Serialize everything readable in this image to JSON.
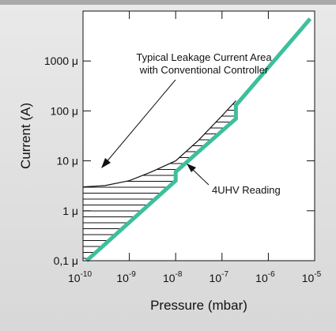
{
  "chart_data": {
    "type": "line",
    "xlabel": "Pressure (mbar)",
    "ylabel": "Current (A)",
    "x_scale": "log",
    "y_scale": "log",
    "xlim": [
      1e-10,
      1e-05
    ],
    "ylim": [
      1e-07,
      0.01
    ],
    "x_tick_labels": [
      {
        "base": "10",
        "exp": "-10"
      },
      {
        "base": "10",
        "exp": "-9"
      },
      {
        "base": "10",
        "exp": "-8"
      },
      {
        "base": "10",
        "exp": "-7"
      },
      {
        "base": "10",
        "exp": "-6"
      },
      {
        "base": "10",
        "exp": "-5"
      }
    ],
    "x_ticks": [
      1e-10,
      1e-09,
      1e-08,
      1e-07,
      1e-06,
      1e-05
    ],
    "y_tick_labels": [
      "0,1 μ",
      "1 μ",
      "10 μ",
      "100 μ",
      "1000 μ"
    ],
    "y_ticks": [
      1e-07,
      1e-06,
      1e-05,
      0.0001,
      0.001
    ],
    "grid": false,
    "series": [
      {
        "color": "#3dbf9c",
        "points": [
          [
            1.2e-10,
            1e-07
          ],
          [
            1e-08,
            4e-06
          ],
          [
            1e-08,
            6e-06
          ],
          [
            2e-07,
            7e-05
          ],
          [
            2e-07,
            0.00013
          ],
          [
            8e-06,
            0.007
          ]
        ]
      },
      {
        "color": "#111111",
        "points": [
          [
            1e-10,
            3e-06
          ],
          [
            3e-10,
            3.2e-06
          ],
          [
            1e-09,
            4e-06
          ],
          [
            3e-09,
            6e-06
          ],
          [
            1e-08,
            1e-05
          ],
          [
            3e-08,
            2.5e-05
          ],
          [
            1e-07,
            8e-05
          ],
          [
            2e-07,
            0.00016
          ]
        ]
      }
    ],
    "annotations": [
      {
        "lines": [
          "Typical Leakage Current Area",
          "with Conventional Controller"
        ]
      },
      {
        "lines": [
          "4UHV Reading"
        ]
      }
    ]
  },
  "colors": {
    "accent": "#3dbf9c",
    "header_bar": "#a7a9ab",
    "background": "#e0e0e0",
    "plot_background": "#ffffff"
  }
}
